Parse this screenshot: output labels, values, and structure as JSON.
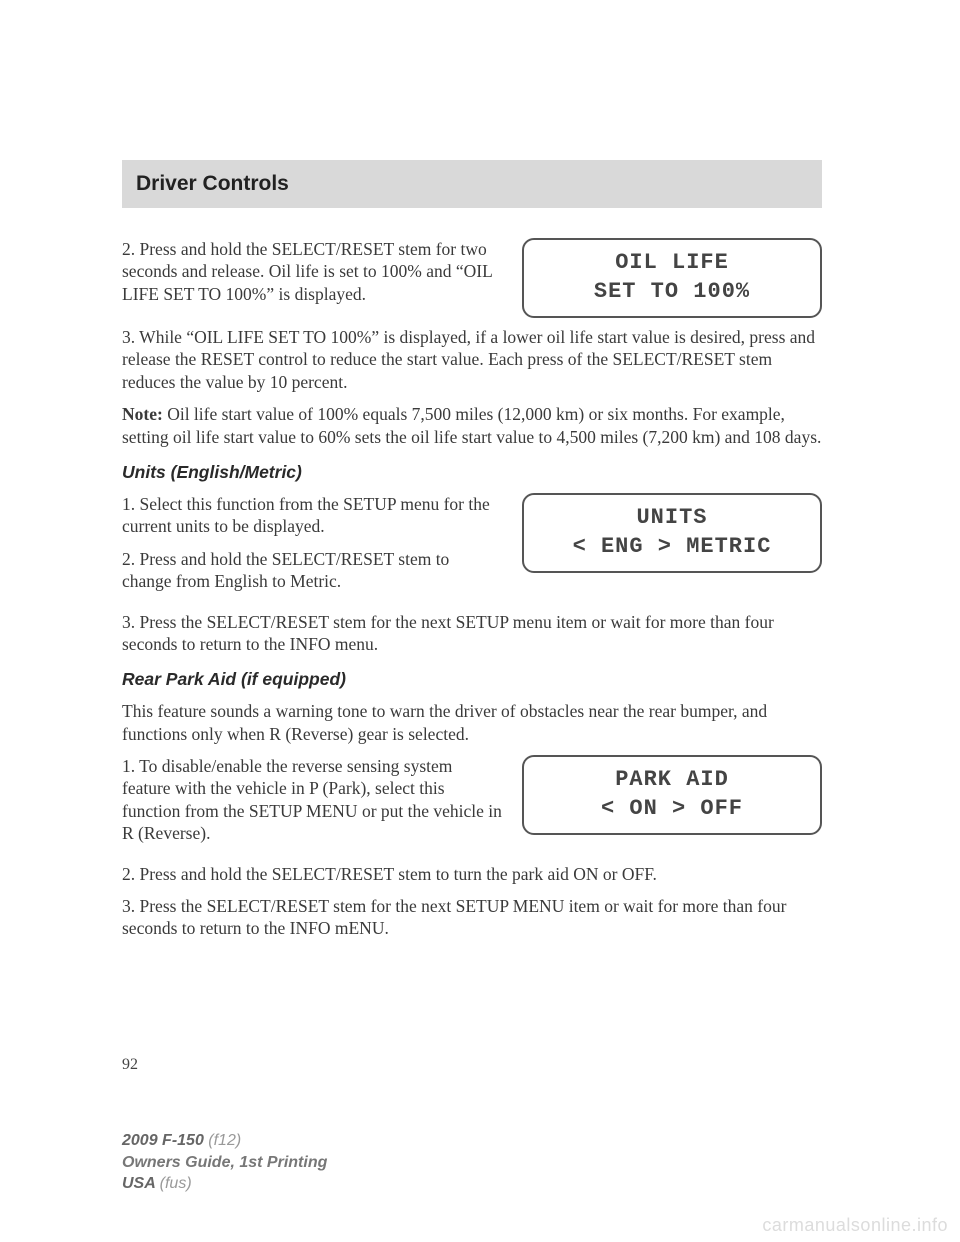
{
  "header": {
    "title": "Driver Controls"
  },
  "display1": {
    "line1": "OIL LIFE",
    "line2": "SET TO 100%"
  },
  "display2": {
    "line1": "UNITS",
    "line2": "< ENG > METRIC"
  },
  "display3": {
    "line1": "PARK AID",
    "line2": "< ON > OFF"
  },
  "body": {
    "p1": "2. Press and hold the SELECT/RESET stem for two seconds and release. Oil life is set to 100% and “OIL LIFE SET TO 100%” is displayed.",
    "p2": "3. While “OIL LIFE SET TO 100%” is displayed, if a lower oil life start value is desired, press and release the RESET control to reduce the start value. Each press of the SELECT/RESET stem reduces the value by 10 percent.",
    "p3_prefix": "Note:",
    "p3": " Oil life start value of 100% equals 7,500 miles (12,000 km) or six months. For example, setting oil life start value to 60% sets the oil life start value to 4,500 miles (7,200 km) and 108 days.",
    "h1": "Units (English/Metric)",
    "p4": "1. Select this function from the SETUP menu for the current units to be displayed.",
    "p5": "2. Press and hold the SELECT/RESET stem to change from English to Metric.",
    "p6": "3. Press the SELECT/RESET stem for the next SETUP menu item or wait for more than four seconds to return to the INFO menu.",
    "h2": "Rear Park Aid (if equipped)",
    "p7": "This feature sounds a warning tone to warn the driver of obstacles near the rear bumper, and functions only when R (Reverse) gear is selected.",
    "p8": "1. To disable/enable the reverse sensing system feature with the vehicle in P (Park), select this function from the SETUP MENU or put the vehicle in R (Reverse).",
    "p9": "2. Press and hold the SELECT/RESET stem to turn the park aid ON or OFF.",
    "p10": "3. Press the SELECT/RESET stem for the next SETUP MENU item or wait for more than four seconds to return to the INFO mENU."
  },
  "page_number": "92",
  "footer": {
    "vehicle": "2009 F-150 ",
    "vehicle_code": "(f12)",
    "guide": "Owners Guide, 1st Printing",
    "region": "USA ",
    "region_code": "(fus)"
  },
  "watermark": "carmanualsonline.info"
}
